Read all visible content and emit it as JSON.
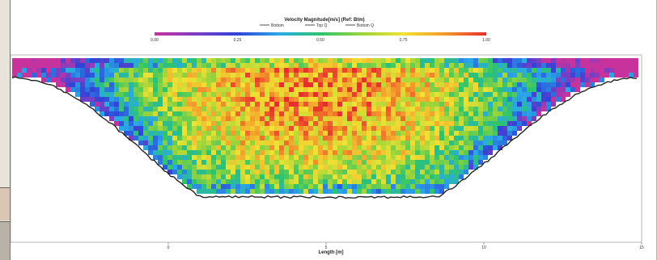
{
  "chart_data": {
    "type": "heatmap",
    "title": "Velocity Magnitude[m/s] (Ref: Btm)",
    "xlabel": "Length [m]",
    "colorbar": {
      "ticks": [
        "0.00",
        "0.25",
        "0.50",
        "0.75",
        "1.00"
      ],
      "range": [
        0,
        1
      ],
      "colors": [
        "#c8329c",
        "#7b3fc4",
        "#2e43d8",
        "#2aa9e8",
        "#2cc46c",
        "#9bd43a",
        "#f2e233",
        "#f39a2b",
        "#e82d2d"
      ]
    },
    "legend": [
      "Bottom",
      "Top Q",
      "Bottom Q"
    ],
    "x_ticks": [
      "0",
      "5",
      "10",
      "15"
    ],
    "xlim": [
      -5,
      15
    ],
    "grid": false
  }
}
